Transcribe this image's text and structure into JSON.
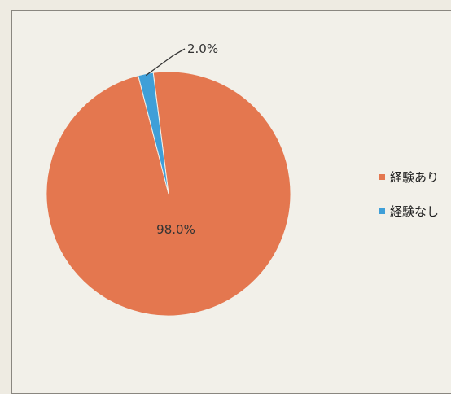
{
  "chart_data": {
    "type": "pie",
    "title": "",
    "slices": [
      {
        "label": "経験あり",
        "value": 98.0,
        "display": "98.0%",
        "color": "#e4774f"
      },
      {
        "label": "経験なし",
        "value": 2.0,
        "display": "2.0%",
        "color": "#3f9fd8"
      }
    ],
    "legend_position": "right"
  }
}
